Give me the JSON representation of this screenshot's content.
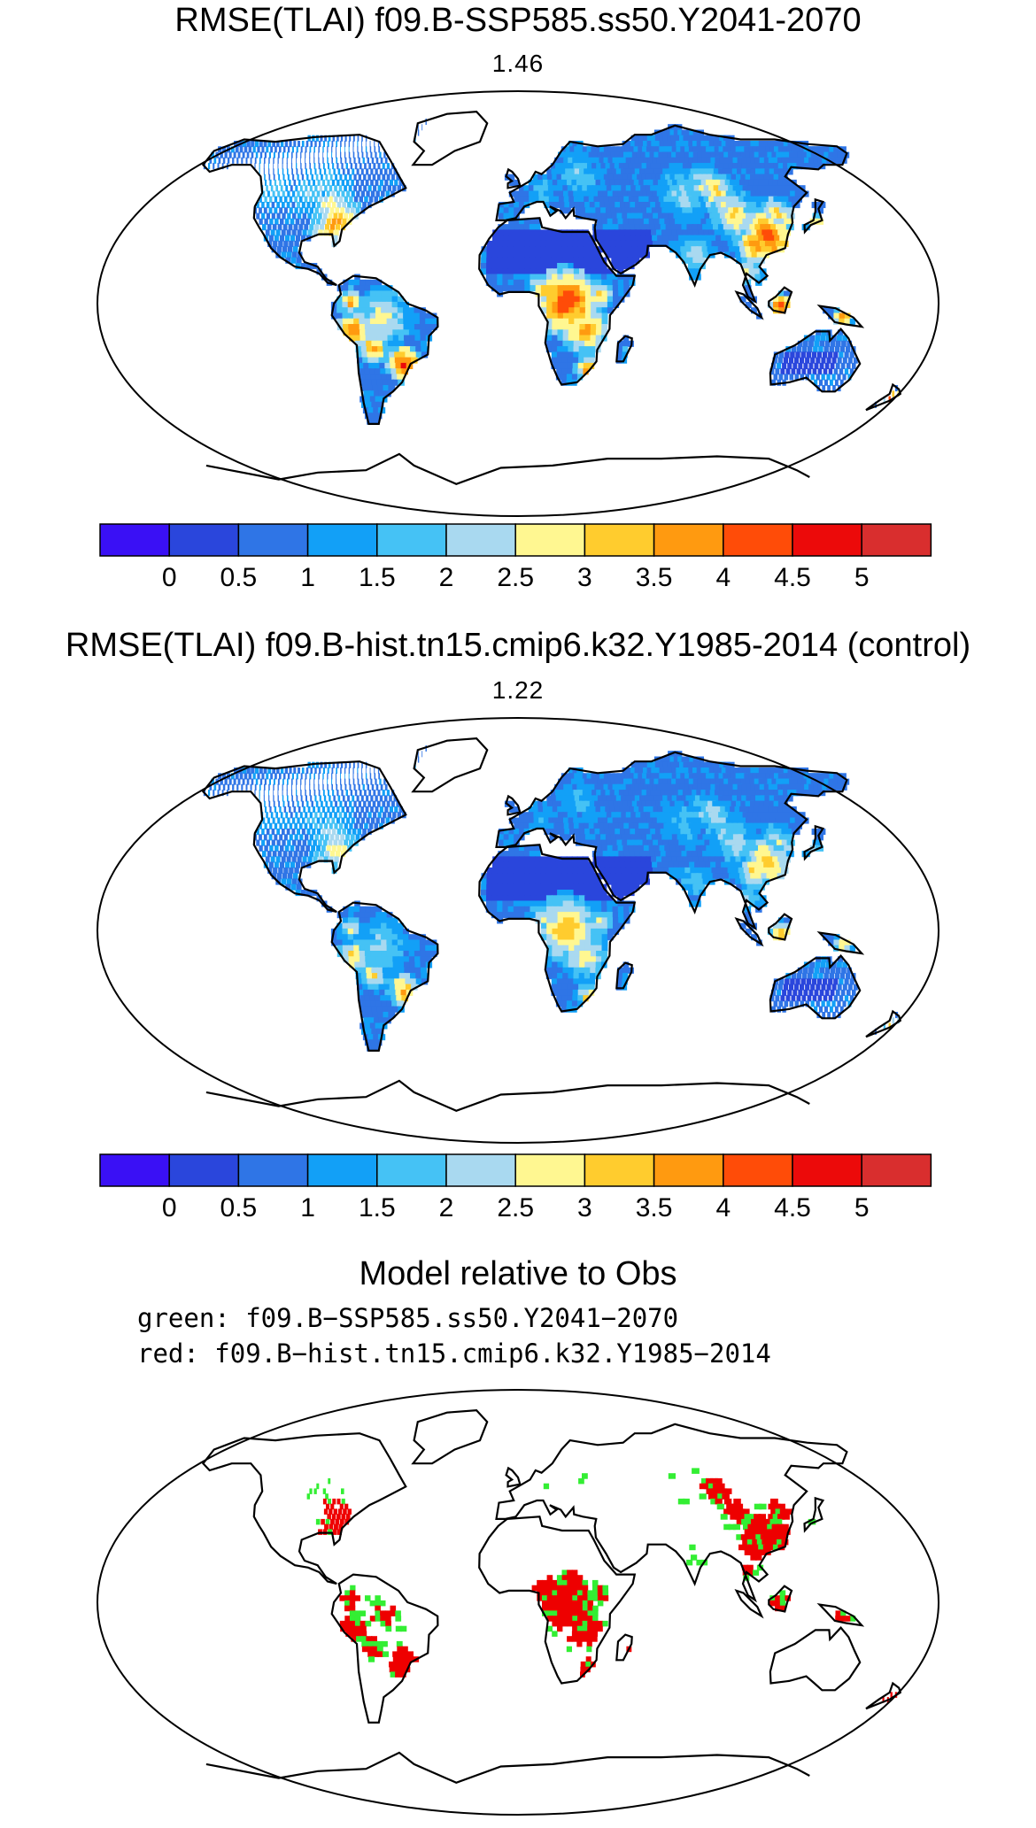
{
  "panels": [
    {
      "title": "RMSE(TLAI) f09.B-SSP585.ss50.Y2041-2070",
      "subtitle": "1.46",
      "hotspot_level": 1.0
    },
    {
      "title": "RMSE(TLAI) f09.B-hist.tn15.cmip6.k32.Y1985-2014 (control)",
      "subtitle": "1.22",
      "hotspot_level": 0.75
    }
  ],
  "colorbar": {
    "colors": [
      "#3a10f5",
      "#2a46dc",
      "#2f75e6",
      "#12a0f7",
      "#45c2f5",
      "#a9d9f0",
      "#fff791",
      "#ffcc2e",
      "#ff9a10",
      "#ff4c08",
      "#ec0a0a",
      "#d92e2e"
    ],
    "tick_labels": [
      "0",
      "0.5",
      "1",
      "1.5",
      "2",
      "2.5",
      "3",
      "3.5",
      "4",
      "4.5",
      "5"
    ]
  },
  "comparison": {
    "title": "Model relative to Obs",
    "green_label": "green: f09.B−SSP585.ss50.Y2041−2070",
    "red_label": "red: f09.B−hist.tn15.cmip6.k32.Y1985−2014",
    "green_color": "#33ee33",
    "red_color": "#ee0000"
  }
}
